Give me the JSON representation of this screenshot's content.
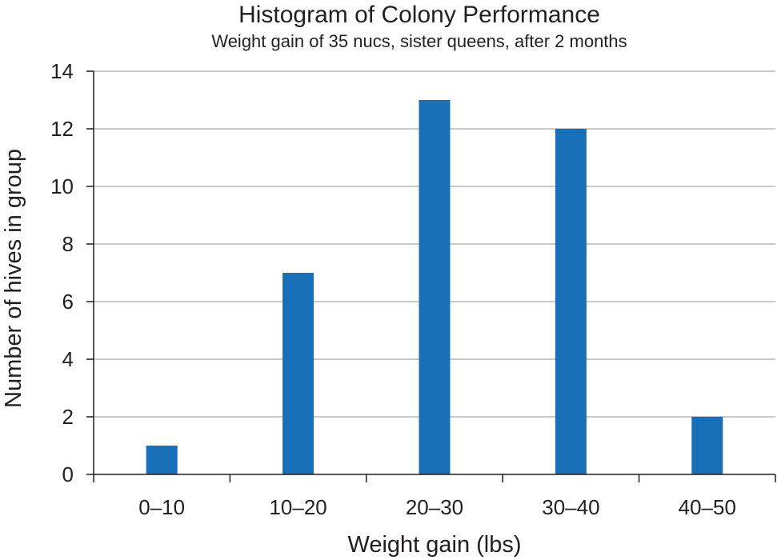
{
  "chart_data": {
    "type": "bar",
    "title": "Histogram of Colony Performance",
    "subtitle": "Weight gain of 35 nucs, sister queens, after 2 months",
    "xlabel": "Weight gain (lbs)",
    "ylabel": "Number of hives in group",
    "categories": [
      "0–10",
      "10–20",
      "20–30",
      "30–40",
      "40–50"
    ],
    "values": [
      1,
      7,
      13,
      12,
      2
    ],
    "ylim": [
      0,
      14
    ],
    "yticks": [
      0,
      2,
      4,
      6,
      8,
      10,
      12,
      14
    ],
    "grid": "horizontal",
    "legend": "none",
    "colors": {
      "bar": "#1a70b8",
      "grid": "#a7a9ac",
      "axis": "#231f20"
    }
  }
}
